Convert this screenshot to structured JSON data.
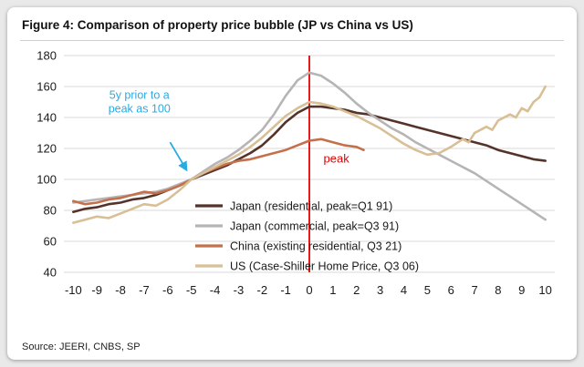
{
  "card": {
    "title": "Figure 4: Comparison of property price bubble (JP vs China vs US)",
    "source": "Source: JEERI, CNBS, SP"
  },
  "chart_data": {
    "type": "line",
    "title": "Figure 4: Comparison of property price bubble (JP vs China vs US)",
    "xlim": [
      -10.4,
      10.4
    ],
    "ylim": [
      40,
      180
    ],
    "xticks": [
      -10,
      -9,
      -8,
      -7,
      -6,
      -5,
      -4,
      -3,
      -2,
      -1,
      0,
      1,
      2,
      3,
      4,
      5,
      6,
      7,
      8,
      9,
      10
    ],
    "yticks": [
      40,
      60,
      80,
      100,
      120,
      140,
      160,
      180
    ],
    "grid": "horizontal",
    "grid_color": "#d9d9d9",
    "legend": {
      "position": "inside-bottom-center"
    },
    "peak_vline": {
      "x": 0,
      "color": "#e60000"
    },
    "annotations": {
      "note": {
        "lines": [
          "5y prior to a",
          "peak as 100"
        ],
        "color": "#29abe2",
        "x": -7.2,
        "y": 152
      },
      "arrow": {
        "from": [
          -5.9,
          124
        ],
        "to": [
          -5.2,
          106
        ],
        "color": "#29abe2"
      },
      "peak": {
        "text": "peak",
        "color": "#e60000",
        "x": 0.6,
        "y": 111
      }
    },
    "series": [
      {
        "id": "japan-residential",
        "label": "Japan (residential, peak=Q1 91)",
        "color": "#54332a",
        "points": [
          [
            -10,
            79
          ],
          [
            -9.5,
            81
          ],
          [
            -9,
            82
          ],
          [
            -8.5,
            84
          ],
          [
            -8,
            85
          ],
          [
            -7.5,
            87
          ],
          [
            -7,
            88
          ],
          [
            -6.5,
            90
          ],
          [
            -6,
            93
          ],
          [
            -5.5,
            96
          ],
          [
            -5,
            100
          ],
          [
            -4.5,
            103
          ],
          [
            -4,
            106
          ],
          [
            -3.5,
            109
          ],
          [
            -3,
            113
          ],
          [
            -2.5,
            117
          ],
          [
            -2,
            122
          ],
          [
            -1.5,
            129
          ],
          [
            -1,
            137
          ],
          [
            -0.5,
            143
          ],
          [
            0,
            147
          ],
          [
            0.5,
            147
          ],
          [
            1,
            146
          ],
          [
            1.5,
            145
          ],
          [
            2,
            143
          ],
          [
            2.5,
            142
          ],
          [
            3,
            140
          ],
          [
            3.5,
            138
          ],
          [
            4,
            136
          ],
          [
            4.5,
            134
          ],
          [
            5,
            132
          ],
          [
            5.5,
            130
          ],
          [
            6,
            128
          ],
          [
            6.5,
            126
          ],
          [
            7,
            124
          ],
          [
            7.5,
            122
          ],
          [
            8,
            119
          ],
          [
            8.5,
            117
          ],
          [
            9,
            115
          ],
          [
            9.5,
            113
          ],
          [
            10,
            112
          ]
        ]
      },
      {
        "id": "japan-commercial",
        "label": "Japan (commercial, peak=Q3 91)",
        "color": "#b7b4b6",
        "points": [
          [
            -10,
            85
          ],
          [
            -9.5,
            86
          ],
          [
            -9,
            87
          ],
          [
            -8.5,
            88
          ],
          [
            -8,
            89
          ],
          [
            -7.5,
            90
          ],
          [
            -7,
            91
          ],
          [
            -6.5,
            92
          ],
          [
            -6,
            94
          ],
          [
            -5.5,
            97
          ],
          [
            -5,
            100
          ],
          [
            -4.5,
            105
          ],
          [
            -4,
            110
          ],
          [
            -3.5,
            114
          ],
          [
            -3,
            119
          ],
          [
            -2.5,
            125
          ],
          [
            -2,
            132
          ],
          [
            -1.5,
            142
          ],
          [
            -1,
            154
          ],
          [
            -0.5,
            164
          ],
          [
            0,
            169
          ],
          [
            0.5,
            167
          ],
          [
            1,
            162
          ],
          [
            1.5,
            156
          ],
          [
            2,
            149
          ],
          [
            2.5,
            143
          ],
          [
            3,
            138
          ],
          [
            3.5,
            133
          ],
          [
            4,
            129
          ],
          [
            4.5,
            124
          ],
          [
            5,
            120
          ],
          [
            5.5,
            116
          ],
          [
            6,
            112
          ],
          [
            6.5,
            108
          ],
          [
            7,
            104
          ],
          [
            7.5,
            99
          ],
          [
            8,
            94
          ],
          [
            8.5,
            89
          ],
          [
            9,
            84
          ],
          [
            9.5,
            79
          ],
          [
            10,
            74
          ]
        ]
      },
      {
        "id": "china-existing-residential",
        "label": "China (existing residential, Q3 21)",
        "color": "#c3714c",
        "points": [
          [
            -10,
            86
          ],
          [
            -9.5,
            84
          ],
          [
            -9,
            85
          ],
          [
            -8.5,
            87
          ],
          [
            -8,
            88
          ],
          [
            -7.5,
            90
          ],
          [
            -7,
            92
          ],
          [
            -6.5,
            91
          ],
          [
            -6,
            93
          ],
          [
            -5.5,
            96
          ],
          [
            -5,
            100
          ],
          [
            -4.5,
            104
          ],
          [
            -4,
            107
          ],
          [
            -3.5,
            110
          ],
          [
            -3,
            112
          ],
          [
            -2.5,
            113
          ],
          [
            -2,
            115
          ],
          [
            -1.5,
            117
          ],
          [
            -1,
            119
          ],
          [
            -0.5,
            122
          ],
          [
            0,
            125
          ],
          [
            0.5,
            126
          ],
          [
            1,
            124
          ],
          [
            1.5,
            122
          ],
          [
            2,
            121
          ],
          [
            2.3,
            119
          ]
        ]
      },
      {
        "id": "us-case-shiller",
        "label": "US (Case-Shiller Home Price, Q3 06)",
        "color": "#d8bf95",
        "points": [
          [
            -10,
            72
          ],
          [
            -9.5,
            74
          ],
          [
            -9,
            76
          ],
          [
            -8.5,
            75
          ],
          [
            -8,
            78
          ],
          [
            -7.5,
            81
          ],
          [
            -7,
            84
          ],
          [
            -6.5,
            83
          ],
          [
            -6,
            87
          ],
          [
            -5.5,
            93
          ],
          [
            -5,
            100
          ],
          [
            -4.5,
            104
          ],
          [
            -4,
            108
          ],
          [
            -3.5,
            112
          ],
          [
            -3,
            116
          ],
          [
            -2.5,
            121
          ],
          [
            -2,
            127
          ],
          [
            -1.5,
            134
          ],
          [
            -1,
            141
          ],
          [
            -0.5,
            146
          ],
          [
            0,
            150
          ],
          [
            0.5,
            149
          ],
          [
            1,
            147
          ],
          [
            1.5,
            144
          ],
          [
            2,
            141
          ],
          [
            2.5,
            137
          ],
          [
            3,
            133
          ],
          [
            3.5,
            128
          ],
          [
            4,
            123
          ],
          [
            4.5,
            119
          ],
          [
            5,
            116
          ],
          [
            5.5,
            117
          ],
          [
            6,
            121
          ],
          [
            6.5,
            126
          ],
          [
            6.75,
            124
          ],
          [
            7,
            130
          ],
          [
            7.5,
            134
          ],
          [
            7.75,
            132
          ],
          [
            8,
            138
          ],
          [
            8.5,
            142
          ],
          [
            8.75,
            140
          ],
          [
            9,
            146
          ],
          [
            9.25,
            144
          ],
          [
            9.5,
            150
          ],
          [
            9.75,
            153
          ],
          [
            10,
            160
          ]
        ]
      }
    ]
  }
}
